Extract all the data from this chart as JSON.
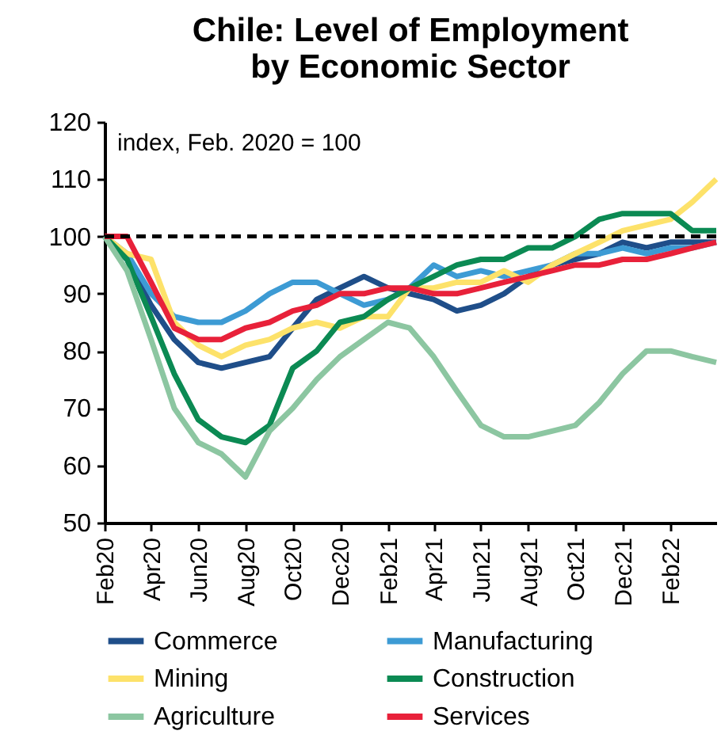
{
  "chart_data": {
    "type": "line",
    "title": "Chile: Level of Employment\nby Economic Sector",
    "annotations": [
      "index, Feb. 2020 = 100"
    ],
    "x": [
      "2020-02",
      "2020-03",
      "2020-04",
      "2020-05",
      "2020-06",
      "2020-07",
      "2020-08",
      "2020-09",
      "2020-10",
      "2020-11",
      "2020-12",
      "2021-01",
      "2021-02",
      "2021-03",
      "2021-04",
      "2021-05",
      "2021-06",
      "2021-07",
      "2021-08",
      "2021-09",
      "2021-10",
      "2021-11",
      "2021-12",
      "2022-01",
      "2022-02",
      "2022-03",
      "2022-04"
    ],
    "series": [
      {
        "name": "Commerce",
        "color": "#1f4e89",
        "values": [
          100,
          96,
          88,
          82,
          78,
          77,
          78,
          79,
          84,
          89,
          91,
          93,
          91,
          90,
          89,
          87,
          88,
          90,
          93,
          95,
          96,
          97,
          99,
          98,
          99,
          99,
          99
        ]
      },
      {
        "name": "Manufacturing",
        "color": "#3d9bd4",
        "values": [
          100,
          97,
          90,
          86,
          85,
          85,
          87,
          90,
          92,
          92,
          90,
          88,
          89,
          91,
          95,
          93,
          94,
          93,
          94,
          95,
          97,
          97,
          98,
          97,
          98,
          98,
          99
        ]
      },
      {
        "name": "Mining",
        "color": "#fde26a",
        "values": [
          100,
          97,
          96,
          85,
          81,
          79,
          81,
          82,
          84,
          85,
          84,
          86,
          86,
          91,
          91,
          92,
          92,
          94,
          92,
          95,
          97,
          99,
          101,
          102,
          103,
          106,
          110
        ]
      },
      {
        "name": "Construction",
        "color": "#0b8a53",
        "values": [
          100,
          96,
          86,
          76,
          68,
          65,
          64,
          67,
          77,
          80,
          85,
          86,
          89,
          91,
          93,
          95,
          96,
          96,
          98,
          98,
          100,
          103,
          104,
          104,
          104,
          101,
          101
        ]
      },
      {
        "name": "Agriculture",
        "color": "#8cc6a1",
        "values": [
          100,
          94,
          82,
          70,
          64,
          62,
          58,
          66,
          70,
          75,
          79,
          82,
          85,
          84,
          79,
          73,
          67,
          65,
          65,
          66,
          67,
          71,
          76,
          80,
          80,
          79,
          78
        ]
      },
      {
        "name": "Services",
        "color": "#e8213a",
        "values": [
          100,
          100,
          92,
          84,
          82,
          82,
          84,
          85,
          87,
          88,
          90,
          90,
          91,
          91,
          90,
          90,
          91,
          92,
          93,
          94,
          95,
          95,
          96,
          96,
          97,
          98,
          99
        ]
      }
    ],
    "xlim": [
      "2020-02",
      "2022-04"
    ],
    "xticks": [
      {
        "value": "2020-02",
        "label": "Feb20"
      },
      {
        "value": "2020-04",
        "label": "Apr20"
      },
      {
        "value": "2020-06",
        "label": "Jun20"
      },
      {
        "value": "2020-08",
        "label": "Aug20"
      },
      {
        "value": "2020-10",
        "label": "Oct20"
      },
      {
        "value": "2020-12",
        "label": "Dec20"
      },
      {
        "value": "2021-02",
        "label": "Feb21"
      },
      {
        "value": "2021-04",
        "label": "Apr21"
      },
      {
        "value": "2021-06",
        "label": "Jun21"
      },
      {
        "value": "2021-08",
        "label": "Aug21"
      },
      {
        "value": "2021-10",
        "label": "Oct21"
      },
      {
        "value": "2021-12",
        "label": "Dec21"
      },
      {
        "value": "2022-02",
        "label": "Feb22"
      }
    ],
    "ylim": [
      50,
      120
    ],
    "yticks": [
      50,
      60,
      70,
      80,
      90,
      100,
      110,
      120
    ],
    "ref_lines": [
      {
        "axis": "y",
        "value": 100,
        "color": "#000000",
        "line_style": "dashed"
      }
    ],
    "grid": false,
    "legend": "bottom",
    "marker": "none",
    "line_style": "solid"
  }
}
